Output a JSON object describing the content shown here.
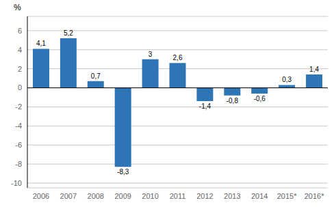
{
  "chart_data": {
    "type": "bar",
    "ylabel": "%",
    "categories": [
      "2006",
      "2007",
      "2008",
      "2009",
      "2010",
      "2011",
      "2012",
      "2013",
      "2014",
      "2015*",
      "2016*"
    ],
    "values": [
      4.1,
      5.2,
      0.7,
      -8.3,
      3.0,
      2.6,
      -1.4,
      -0.8,
      -0.6,
      0.3,
      1.4
    ],
    "value_labels": [
      "4,1",
      "5,2",
      "0,7",
      "-8,3",
      "3",
      "2,6",
      "-1,4",
      "-0,8",
      "-0,6",
      "0,3",
      "1,4"
    ],
    "data_labels": true,
    "color": "#2E75B6",
    "ylim": [
      -10.5,
      7.5
    ],
    "yticks": [
      -10,
      -8,
      -6,
      -4,
      -2,
      0,
      2,
      4,
      6
    ],
    "grid": true
  }
}
